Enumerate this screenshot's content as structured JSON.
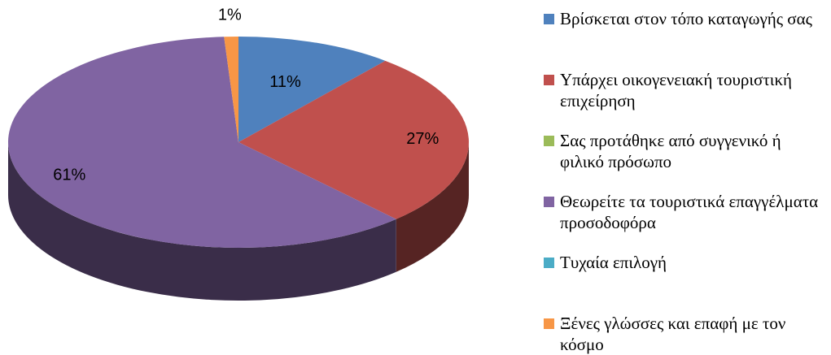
{
  "chart_data": {
    "type": "pie",
    "categories": [
      "Βρίσκεται στον τόπο καταγωγής σας",
      "Υπάρχει οικογενειακή τουριστική επιχείρηση",
      "Σας προτάθηκε από συγγενικό ή φιλικό πρόσωπο",
      "Θεωρείτε τα τουριστικά επαγγέλματα προσοδοφόρα",
      "Τυχαία επιλογή",
      "Ξένες γλώσσες και επαφή με τον κόσμο"
    ],
    "values": [
      11,
      27,
      0,
      61,
      0,
      1
    ],
    "value_labels": [
      "11%",
      "27%",
      null,
      "61%",
      null,
      "1%"
    ],
    "colors": [
      "#4f81bd",
      "#c0504d",
      "#9bbb59",
      "#8064a2",
      "#4bacc6",
      "#f79646"
    ],
    "legend": "right"
  }
}
